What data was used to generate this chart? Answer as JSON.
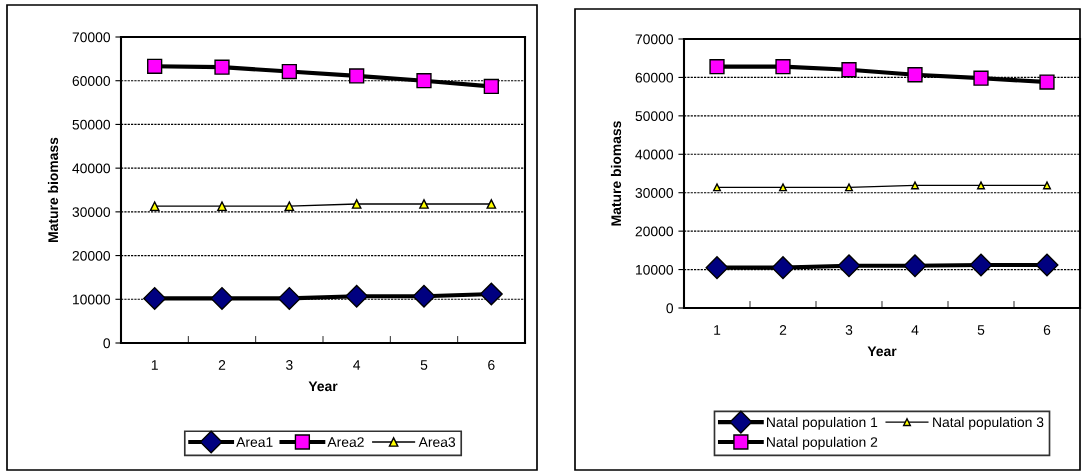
{
  "chart_data": [
    {
      "type": "line",
      "xlabel": "Year",
      "ylabel": "Mature biomass",
      "categories": [
        "1",
        "2",
        "3",
        "4",
        "5",
        "6"
      ],
      "ylim": [
        0,
        70000
      ],
      "yticks": [
        0,
        10000,
        20000,
        30000,
        40000,
        50000,
        60000,
        70000
      ],
      "grid": "y",
      "legend": "bottom",
      "line_style": "solid",
      "series": [
        {
          "name": "Area1",
          "color": "#000080",
          "marker": "diamond",
          "values": [
            10200,
            10200,
            10200,
            10700,
            10700,
            11200
          ]
        },
        {
          "name": "Area2",
          "color": "#ff00ff",
          "marker": "square",
          "values": [
            63300,
            63100,
            62100,
            61100,
            60000,
            58700
          ]
        },
        {
          "name": "Area3",
          "color": "#ffff00",
          "marker": "triangle",
          "values": [
            31300,
            31300,
            31300,
            31800,
            31800,
            31800
          ]
        }
      ]
    },
    {
      "type": "line",
      "xlabel": "Year",
      "ylabel": "Mature biomass",
      "categories": [
        "1",
        "2",
        "3",
        "4",
        "5",
        "6"
      ],
      "ylim": [
        0,
        70000
      ],
      "yticks": [
        0,
        10000,
        20000,
        30000,
        40000,
        50000,
        60000,
        70000
      ],
      "grid": "y",
      "legend": "bottom",
      "line_style": "solid",
      "series": [
        {
          "name": "Natal population 1",
          "color": "#000080",
          "marker": "diamond",
          "values": [
            10500,
            10500,
            11000,
            11000,
            11200,
            11200
          ]
        },
        {
          "name": "Natal population 2",
          "color": "#ff00ff",
          "marker": "square",
          "values": [
            62800,
            62800,
            62000,
            60700,
            59800,
            58800
          ]
        },
        {
          "name": "Natal population 3",
          "color": "#ffff00",
          "marker": "triangle",
          "values": [
            31400,
            31400,
            31400,
            31900,
            31900,
            31900
          ]
        }
      ]
    }
  ]
}
